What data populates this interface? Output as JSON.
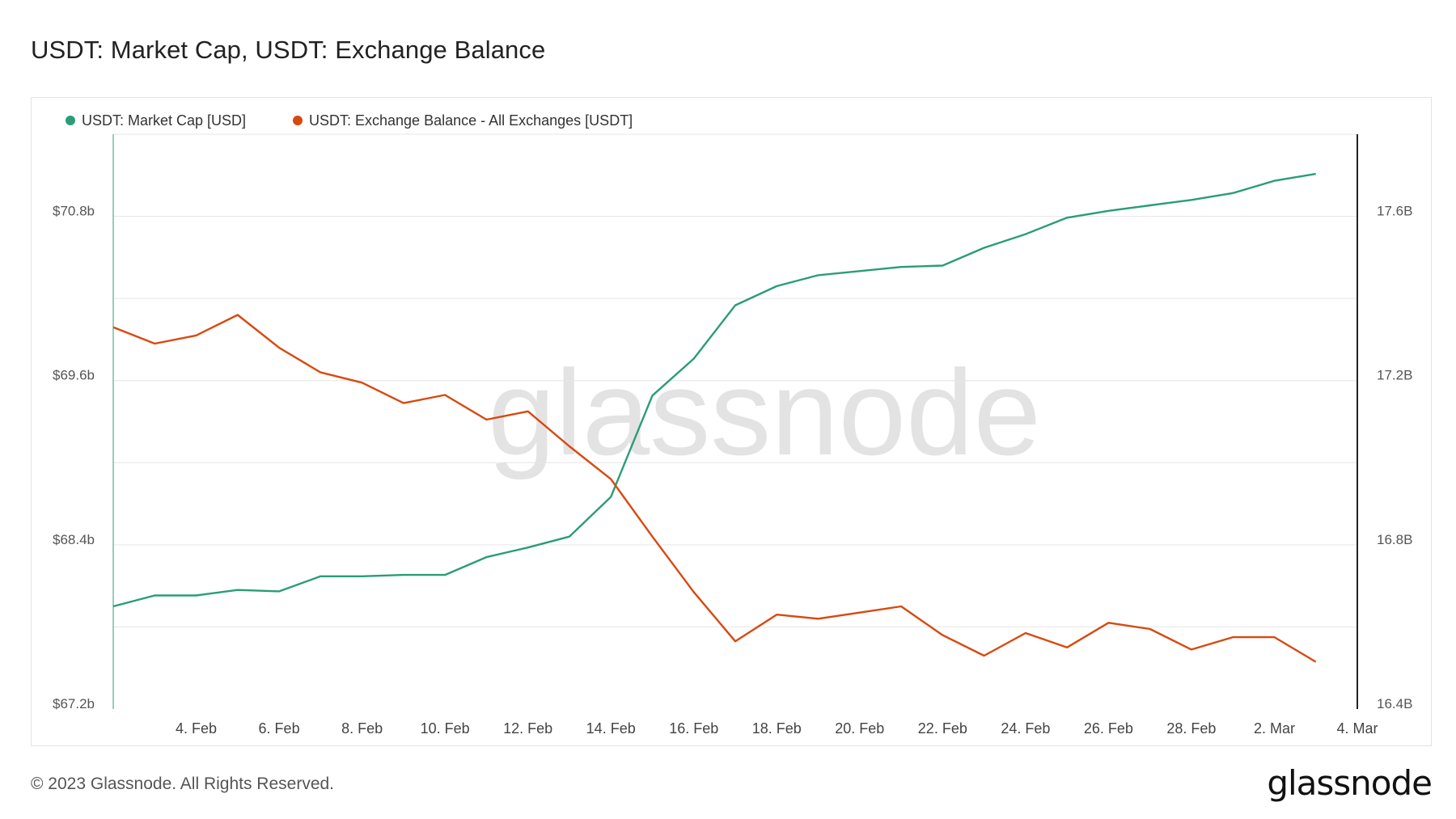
{
  "title": "USDT: Market Cap, USDT: Exchange Balance",
  "footer": {
    "copyright": "© 2023 Glassnode. All Rights Reserved.",
    "logo": "glassnode"
  },
  "watermark": "glassnode",
  "colors": {
    "market_cap": "#2a9d75",
    "exchange_balance": "#d9480f",
    "grid": "#e6e6e6",
    "watermark": "#e3e3e3"
  },
  "chart_data": {
    "type": "line",
    "title": "USDT: Market Cap, USDT: Exchange Balance",
    "legend_position": "top-left",
    "grid": true,
    "x": [
      "2023-02-02",
      "2023-02-03",
      "2023-02-04",
      "2023-02-05",
      "2023-02-06",
      "2023-02-07",
      "2023-02-08",
      "2023-02-09",
      "2023-02-10",
      "2023-02-11",
      "2023-02-12",
      "2023-02-13",
      "2023-02-14",
      "2023-02-15",
      "2023-02-16",
      "2023-02-17",
      "2023-02-18",
      "2023-02-19",
      "2023-02-20",
      "2023-02-21",
      "2023-02-22",
      "2023-02-23",
      "2023-02-24",
      "2023-02-25",
      "2023-02-26",
      "2023-02-27",
      "2023-02-28",
      "2023-03-01",
      "2023-03-02",
      "2023-03-03"
    ],
    "x_ticks": [
      "4. Feb",
      "6. Feb",
      "8. Feb",
      "10. Feb",
      "12. Feb",
      "14. Feb",
      "16. Feb",
      "18. Feb",
      "20. Feb",
      "22. Feb",
      "24. Feb",
      "26. Feb",
      "28. Feb",
      "2. Mar",
      "4. Mar"
    ],
    "x_tick_dates": [
      "2023-02-04",
      "2023-02-06",
      "2023-02-08",
      "2023-02-10",
      "2023-02-12",
      "2023-02-14",
      "2023-02-16",
      "2023-02-18",
      "2023-02-20",
      "2023-02-22",
      "2023-02-24",
      "2023-02-26",
      "2023-02-28",
      "2023-03-02",
      "2023-03-04"
    ],
    "x_range": [
      "2023-02-02",
      "2023-03-04"
    ],
    "y_left": {
      "ticks": [
        "$67.2b",
        "$68.4b",
        "$69.6b",
        "$70.8b"
      ],
      "tick_values": [
        67.2,
        68.4,
        69.6,
        70.8
      ],
      "ylim": [
        67.2,
        71.4
      ]
    },
    "y_right": {
      "ticks": [
        "16.4B",
        "16.8B",
        "17.2B",
        "17.6B"
      ],
      "tick_values": [
        16.4,
        16.8,
        17.2,
        17.6
      ],
      "ylim": [
        16.4,
        17.8
      ]
    },
    "series": [
      {
        "name": "USDT: Market Cap [USD]",
        "axis": "left",
        "values": [
          67.95,
          68.03,
          68.03,
          68.07,
          68.06,
          68.17,
          68.17,
          68.18,
          68.18,
          68.31,
          68.38,
          68.46,
          68.75,
          69.49,
          69.76,
          70.15,
          70.29,
          70.37,
          70.4,
          70.43,
          70.44,
          70.57,
          70.67,
          70.79,
          70.84,
          70.88,
          70.92,
          70.97,
          71.06,
          71.11
        ]
      },
      {
        "name": "USDT: Exchange Balance - All Exchanges [USDT]",
        "axis": "right",
        "values": [
          17.33,
          17.29,
          17.31,
          17.36,
          17.28,
          17.22,
          17.195,
          17.145,
          17.165,
          17.105,
          17.125,
          17.04,
          16.96,
          16.82,
          16.685,
          16.565,
          16.63,
          16.62,
          16.635,
          16.65,
          16.58,
          16.53,
          16.585,
          16.55,
          16.61,
          16.595,
          16.545,
          16.575,
          16.575,
          16.515
        ]
      }
    ]
  }
}
